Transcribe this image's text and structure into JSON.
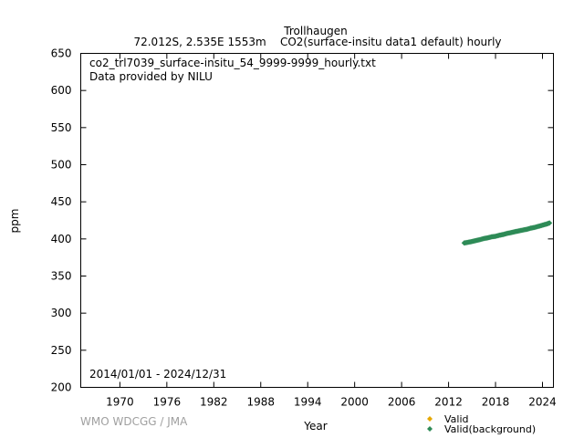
{
  "header": {
    "station": "Trollhaugen",
    "subtitle": "72.012S, 2.535E 1553m    CO2(surface-insitu data1 default) hourly"
  },
  "annotations": {
    "file": "co2_trl7039_surface-insitu_54_9999-9999_hourly.txt",
    "provider": "Data provided by NILU",
    "period": "2014/01/01 - 2024/12/31"
  },
  "footer": {
    "credit": "WMO WDCGG / JMA"
  },
  "colors": {
    "valid": "#e6a800",
    "valid_background": "#2e8b57",
    "frame": "#000000"
  },
  "chart_data": {
    "type": "scatter",
    "xlabel": "Year",
    "ylabel": "ppm",
    "xlim": [
      1965.0,
      2025.4
    ],
    "ylim": [
      200,
      650
    ],
    "xticks": [
      1970,
      1976,
      1982,
      1988,
      1994,
      2000,
      2006,
      2012,
      2018,
      2024
    ],
    "yticks": [
      200,
      250,
      300,
      350,
      400,
      450,
      500,
      550,
      600,
      650
    ],
    "legend": {
      "placement": "bottom-right outside"
    },
    "series": [
      {
        "name": "Valid",
        "color": "#e6a800",
        "marker": "diamond",
        "x": [],
        "y": []
      },
      {
        "name": "Valid(background)",
        "color": "#2e8b57",
        "marker": "diamond",
        "x": [
          2014.0,
          2014.5,
          2015.0,
          2015.5,
          2016.0,
          2016.5,
          2017.0,
          2017.5,
          2018.0,
          2018.5,
          2019.0,
          2019.5,
          2020.0,
          2020.5,
          2021.0,
          2021.5,
          2022.0,
          2022.5,
          2023.0,
          2023.5,
          2024.0,
          2024.5,
          2024.9
        ],
        "y": [
          394.5,
          395.5,
          396.5,
          397.8,
          399.0,
          400.5,
          401.5,
          402.8,
          403.5,
          405.0,
          406.0,
          407.5,
          408.5,
          409.8,
          410.8,
          412.0,
          413.0,
          414.5,
          415.5,
          417.0,
          418.5,
          420.0,
          421.5
        ]
      }
    ]
  }
}
